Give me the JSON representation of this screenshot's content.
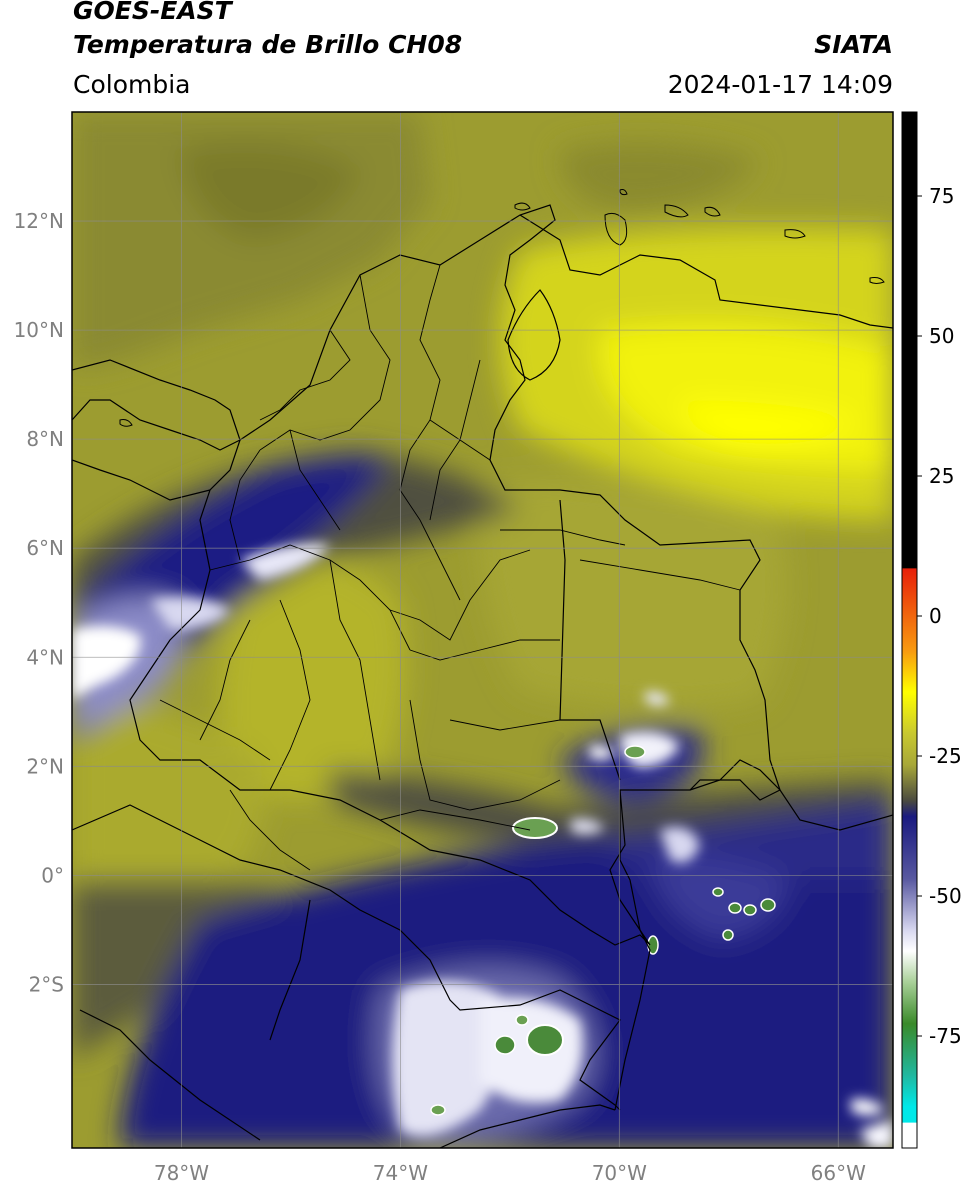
{
  "header": {
    "satellite": "GOES-EAST",
    "product": "Temperatura de Brillo CH08",
    "organization": "SIATA",
    "region": "Colombia",
    "timestamp": "2024-01-17 14:09"
  },
  "map": {
    "lon_range": [
      -80,
      -65
    ],
    "lat_range": [
      -5,
      14
    ],
    "lat_ticks": [
      {
        "value": 12,
        "label": "12°N"
      },
      {
        "value": 10,
        "label": "10°N"
      },
      {
        "value": 8,
        "label": "8°N"
      },
      {
        "value": 6,
        "label": "6°N"
      },
      {
        "value": 4,
        "label": "4°N"
      },
      {
        "value": 2,
        "label": "2°N"
      },
      {
        "value": 0,
        "label": "0°"
      },
      {
        "value": -2,
        "label": "2°S"
      }
    ],
    "lon_ticks": [
      {
        "value": -78,
        "label": "78°W"
      },
      {
        "value": -74,
        "label": "74°W"
      },
      {
        "value": -70,
        "label": "70°W"
      },
      {
        "value": -66,
        "label": "66°W"
      }
    ],
    "gridlines": true
  },
  "colorbar": {
    "range": [
      -95,
      90
    ],
    "ticks": [
      {
        "value": 75,
        "label": "75"
      },
      {
        "value": 50,
        "label": "50"
      },
      {
        "value": 25,
        "label": "25"
      },
      {
        "value": 0,
        "label": "0"
      },
      {
        "value": -25,
        "label": "-25"
      },
      {
        "value": -50,
        "label": "-50"
      },
      {
        "value": -75,
        "label": "-75"
      }
    ],
    "colors": {
      "warm_black": "#000000",
      "red": "#e8200a",
      "orange": "#f89a10",
      "yellow": "#ffff00",
      "olive": "#a8a838",
      "grey": "#5a5a3a",
      "navy": "#1a1a80",
      "lavender": "#b8b8e0",
      "white": "#ffffff",
      "green": "#3a8a2a",
      "teal": "#20b8a0",
      "cyan": "#00e8e8"
    }
  }
}
